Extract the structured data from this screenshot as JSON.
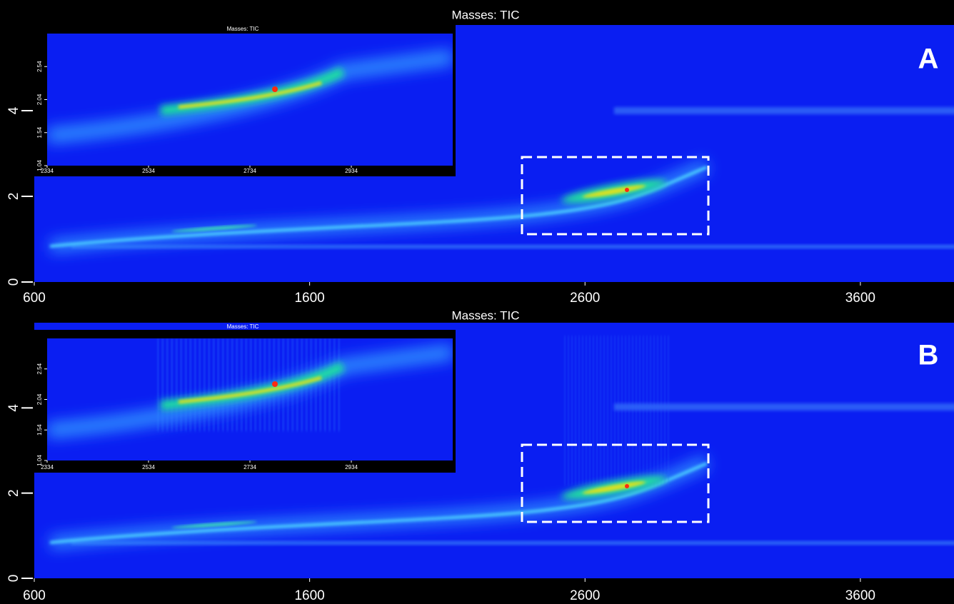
{
  "panels": [
    {
      "label": "A",
      "title": "Masses: TIC",
      "xlim": [
        600,
        3940
      ],
      "ylim": [
        0,
        6
      ],
      "xticks": [
        600,
        1600,
        2600,
        3600
      ],
      "yticks": [
        0,
        2,
        4
      ],
      "inset": {
        "title": "Masses: TIC",
        "xlim": [
          2334,
          3134
        ],
        "ylim": [
          1.04,
          3.04
        ],
        "xticks": [
          2334,
          2534,
          2734,
          2934
        ],
        "yticks": [
          1.04,
          1.54,
          2.04,
          2.54
        ]
      }
    },
    {
      "label": "B",
      "title": "Masses: TIC",
      "xlim": [
        600,
        3940
      ],
      "ylim": [
        0,
        6
      ],
      "xticks": [
        600,
        1600,
        2600,
        3600
      ],
      "yticks": [
        0,
        2,
        4
      ],
      "inset": {
        "title": "Masses: TIC",
        "xlim": [
          2334,
          3134
        ],
        "ylim": [
          1.04,
          3.04
        ],
        "xticks": [
          2334,
          2534,
          2734,
          2934
        ],
        "yticks": [
          1.04,
          1.54,
          2.04,
          2.54
        ]
      }
    }
  ]
}
